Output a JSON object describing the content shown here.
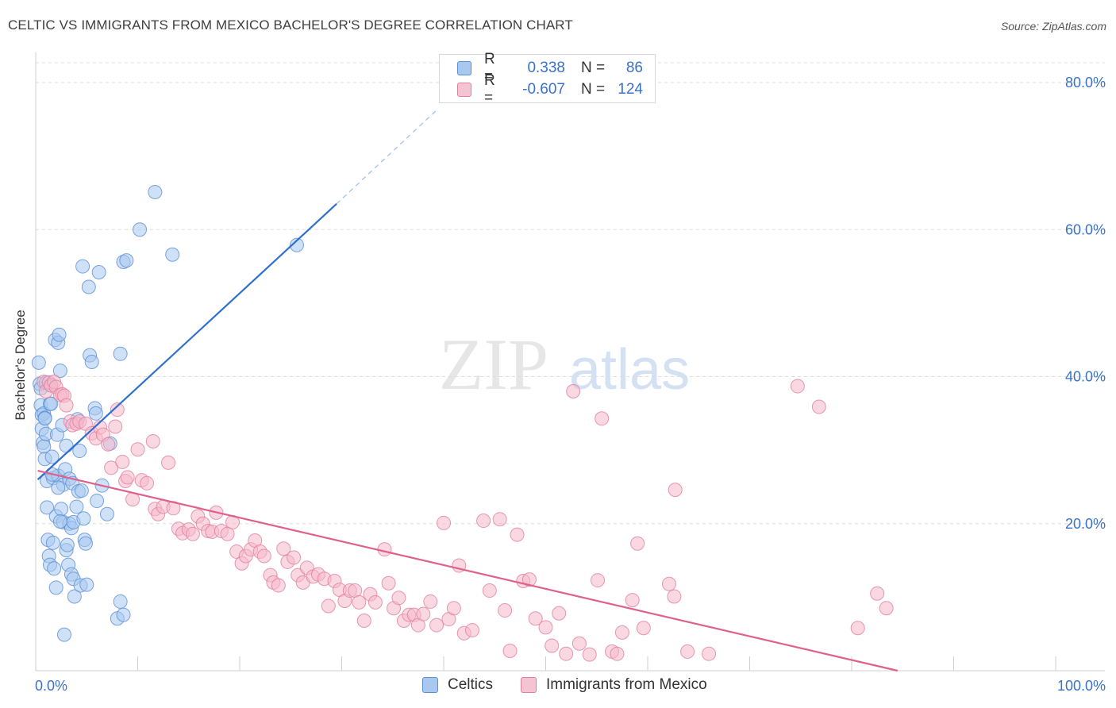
{
  "title": "CELTIC VS IMMIGRANTS FROM MEXICO BACHELOR'S DEGREE CORRELATION CHART",
  "source": "Source: ZipAtlas.com",
  "watermark": {
    "zip": "ZIP",
    "atlas": "atlas"
  },
  "legend_top": {
    "rows": [
      {
        "r_label": "R =",
        "r_value": "0.338",
        "n_label": "N =",
        "n_value": "86"
      },
      {
        "r_label": "R =",
        "r_value": "-0.607",
        "n_label": "N =",
        "n_value": "124"
      }
    ]
  },
  "legend_bottom": {
    "celtics": "Celtics",
    "mexico": "Immigrants from Mexico"
  },
  "colors": {
    "blue_fill": "#a8c8f0",
    "blue_stroke": "#5b8fd6",
    "blue_line": "#2e6fcf",
    "pink_fill": "#f5b8cb",
    "pink_stroke": "#e0809f",
    "pink_line": "#e0608c",
    "axis_text": "#3a72c9",
    "grid": "#dcdcdc"
  },
  "chart_data": {
    "type": "scatter",
    "title": "CELTIC VS IMMIGRANTS FROM MEXICO BACHELOR'S DEGREE CORRELATION CHART",
    "xlabel": "",
    "ylabel": "Bachelor's Degree",
    "xlim": [
      0,
      100
    ],
    "ylim": [
      0,
      80
    ],
    "x_ticks": [
      0,
      10,
      20,
      30,
      40,
      50,
      60,
      70,
      80,
      90,
      100
    ],
    "x_tick_labels": {
      "0": "0.0%",
      "100": "100.0%"
    },
    "y_ticks": [
      20,
      40,
      60,
      80
    ],
    "y_tick_labels": [
      "20.0%",
      "40.0%",
      "60.0%",
      "80.0%"
    ],
    "grid": true,
    "legend_position": "top-center",
    "series": [
      {
        "name": "Celtics",
        "R": 0.338,
        "N": 86,
        "trend": {
          "x": [
            0.2,
            29.5
          ],
          "y": [
            26,
            63.5
          ]
        },
        "trend_extension": {
          "x": [
            29.5,
            39.5
          ],
          "y": [
            63.5,
            76.5
          ]
        },
        "points": [
          [
            0.3,
            41.9
          ],
          [
            0.4,
            39.0
          ],
          [
            0.5,
            38.4
          ],
          [
            0.5,
            36.1
          ],
          [
            0.6,
            34.8
          ],
          [
            0.6,
            32.9
          ],
          [
            0.7,
            31.0
          ],
          [
            0.8,
            30.5
          ],
          [
            0.8,
            35.0
          ],
          [
            0.9,
            34.4
          ],
          [
            0.9,
            28.8
          ],
          [
            1.0,
            39.2
          ],
          [
            1.0,
            32.2
          ],
          [
            1.1,
            25.8
          ],
          [
            1.1,
            22.2
          ],
          [
            1.2,
            17.8
          ],
          [
            1.3,
            15.6
          ],
          [
            1.4,
            14.4
          ],
          [
            1.4,
            36.3
          ],
          [
            1.5,
            36.3
          ],
          [
            1.6,
            29.1
          ],
          [
            1.7,
            26.2
          ],
          [
            1.7,
            17.4
          ],
          [
            1.8,
            13.9
          ],
          [
            1.9,
            45.0
          ],
          [
            2.0,
            21.0
          ],
          [
            2.0,
            11.3
          ],
          [
            2.1,
            32.1
          ],
          [
            2.2,
            26.5
          ],
          [
            2.2,
            44.6
          ],
          [
            2.3,
            45.7
          ],
          [
            2.4,
            40.8
          ],
          [
            2.5,
            22.0
          ],
          [
            2.6,
            33.4
          ],
          [
            2.7,
            25.3
          ],
          [
            2.7,
            20.2
          ],
          [
            2.8,
            4.9
          ],
          [
            2.9,
            27.4
          ],
          [
            3.0,
            16.4
          ],
          [
            3.1,
            17.1
          ],
          [
            3.2,
            14.4
          ],
          [
            3.3,
            26.1
          ],
          [
            3.3,
            20.0
          ],
          [
            3.5,
            19.4
          ],
          [
            3.5,
            13.1
          ],
          [
            3.6,
            25.5
          ],
          [
            3.7,
            20.2
          ],
          [
            3.7,
            12.5
          ],
          [
            3.8,
            10.1
          ],
          [
            4.0,
            22.3
          ],
          [
            4.1,
            34.2
          ],
          [
            4.2,
            24.4
          ],
          [
            4.3,
            29.9
          ],
          [
            4.4,
            11.6
          ],
          [
            4.5,
            24.5
          ],
          [
            4.6,
            55.0
          ],
          [
            4.7,
            20.7
          ],
          [
            4.8,
            17.8
          ],
          [
            4.9,
            17.3
          ],
          [
            5.0,
            11.7
          ],
          [
            5.2,
            52.2
          ],
          [
            5.3,
            42.9
          ],
          [
            5.5,
            42.0
          ],
          [
            5.8,
            35.7
          ],
          [
            5.9,
            35.0
          ],
          [
            6.0,
            23.1
          ],
          [
            6.2,
            54.2
          ],
          [
            6.5,
            25.2
          ],
          [
            7.0,
            21.3
          ],
          [
            7.3,
            30.9
          ],
          [
            8.0,
            7.1
          ],
          [
            8.3,
            43.1
          ],
          [
            8.3,
            9.4
          ],
          [
            8.6,
            7.6
          ],
          [
            8.6,
            55.6
          ],
          [
            8.9,
            55.8
          ],
          [
            10.2,
            60.0
          ],
          [
            11.7,
            65.1
          ],
          [
            13.4,
            56.6
          ],
          [
            25.6,
            57.9
          ],
          [
            2.4,
            20.3
          ],
          [
            1.6,
            26.7
          ],
          [
            3.0,
            30.6
          ],
          [
            0.9,
            34.3
          ],
          [
            1.5,
            38.9
          ],
          [
            2.2,
            24.9
          ]
        ]
      },
      {
        "name": "Immigrants from Mexico",
        "R": -0.607,
        "N": 124,
        "trend": {
          "x": [
            0.2,
            84.5
          ],
          "y": [
            27.2,
            0
          ]
        },
        "points": [
          [
            0.8,
            39.3
          ],
          [
            1.0,
            38.0
          ],
          [
            1.3,
            39.2
          ],
          [
            1.5,
            38.8
          ],
          [
            1.8,
            39.3
          ],
          [
            2.0,
            38.6
          ],
          [
            2.4,
            37.5
          ],
          [
            2.6,
            37.6
          ],
          [
            2.8,
            37.4
          ],
          [
            3.0,
            36.1
          ],
          [
            3.4,
            33.9
          ],
          [
            3.6,
            33.4
          ],
          [
            4.0,
            33.6
          ],
          [
            4.3,
            33.9
          ],
          [
            4.9,
            33.6
          ],
          [
            5.5,
            32.3
          ],
          [
            5.9,
            31.6
          ],
          [
            6.3,
            33.1
          ],
          [
            6.6,
            32.1
          ],
          [
            7.1,
            30.8
          ],
          [
            7.4,
            27.6
          ],
          [
            7.8,
            33.2
          ],
          [
            8.0,
            35.5
          ],
          [
            8.5,
            28.4
          ],
          [
            8.8,
            25.8
          ],
          [
            9.0,
            26.3
          ],
          [
            9.5,
            23.3
          ],
          [
            10.0,
            30.1
          ],
          [
            10.4,
            25.9
          ],
          [
            10.9,
            25.5
          ],
          [
            11.5,
            31.2
          ],
          [
            11.7,
            22.0
          ],
          [
            12.0,
            21.3
          ],
          [
            12.5,
            22.3
          ],
          [
            13.0,
            28.3
          ],
          [
            13.5,
            22.1
          ],
          [
            14.0,
            19.3
          ],
          [
            14.4,
            18.7
          ],
          [
            15.0,
            19.2
          ],
          [
            15.4,
            18.6
          ],
          [
            15.9,
            21.0
          ],
          [
            16.4,
            20.0
          ],
          [
            16.9,
            19.0
          ],
          [
            17.3,
            18.9
          ],
          [
            17.7,
            21.5
          ],
          [
            18.2,
            19.0
          ],
          [
            18.8,
            18.6
          ],
          [
            19.3,
            20.2
          ],
          [
            19.7,
            16.2
          ],
          [
            20.2,
            14.6
          ],
          [
            20.6,
            15.6
          ],
          [
            21.1,
            16.5
          ],
          [
            21.5,
            17.7
          ],
          [
            22.0,
            16.2
          ],
          [
            22.4,
            15.6
          ],
          [
            23.0,
            13.0
          ],
          [
            23.3,
            12.0
          ],
          [
            23.8,
            11.6
          ],
          [
            24.3,
            16.6
          ],
          [
            24.7,
            14.8
          ],
          [
            25.3,
            15.4
          ],
          [
            25.7,
            13.0
          ],
          [
            26.2,
            12.0
          ],
          [
            26.6,
            14.0
          ],
          [
            27.2,
            12.8
          ],
          [
            27.7,
            13.1
          ],
          [
            28.3,
            12.5
          ],
          [
            28.7,
            8.8
          ],
          [
            29.3,
            12.2
          ],
          [
            29.8,
            11.0
          ],
          [
            30.3,
            9.5
          ],
          [
            30.8,
            10.9
          ],
          [
            31.3,
            10.9
          ],
          [
            31.7,
            9.3
          ],
          [
            32.2,
            6.8
          ],
          [
            32.8,
            10.4
          ],
          [
            33.3,
            9.3
          ],
          [
            34.2,
            16.5
          ],
          [
            34.6,
            11.9
          ],
          [
            35.1,
            8.5
          ],
          [
            35.6,
            9.9
          ],
          [
            36.1,
            6.8
          ],
          [
            36.6,
            7.6
          ],
          [
            37.1,
            7.6
          ],
          [
            37.5,
            6.2
          ],
          [
            38.0,
            7.7
          ],
          [
            38.7,
            9.4
          ],
          [
            39.3,
            6.2
          ],
          [
            40.0,
            20.1
          ],
          [
            40.5,
            7.0
          ],
          [
            41.0,
            8.5
          ],
          [
            41.5,
            14.3
          ],
          [
            42.0,
            5.1
          ],
          [
            42.8,
            5.5
          ],
          [
            44.5,
            10.9
          ],
          [
            45.5,
            20.6
          ],
          [
            46.0,
            8.2
          ],
          [
            46.5,
            2.7
          ],
          [
            47.2,
            18.5
          ],
          [
            47.8,
            12.2
          ],
          [
            48.4,
            12.4
          ],
          [
            49.0,
            7.1
          ],
          [
            50.0,
            5.9
          ],
          [
            50.6,
            3.4
          ],
          [
            51.3,
            7.8
          ],
          [
            52.0,
            2.3
          ],
          [
            53.3,
            3.7
          ],
          [
            54.3,
            2.2
          ],
          [
            55.1,
            12.3
          ],
          [
            55.5,
            34.3
          ],
          [
            56.5,
            2.6
          ],
          [
            57.0,
            2.3
          ],
          [
            57.5,
            5.2
          ],
          [
            58.5,
            9.6
          ],
          [
            59.0,
            17.3
          ],
          [
            59.6,
            5.8
          ],
          [
            62.1,
            11.8
          ],
          [
            62.6,
            10.1
          ],
          [
            62.7,
            24.6
          ],
          [
            63.9,
            2.6
          ],
          [
            66.0,
            2.3
          ],
          [
            74.7,
            38.7
          ],
          [
            76.8,
            35.9
          ],
          [
            80.6,
            5.8
          ],
          [
            82.5,
            10.5
          ],
          [
            83.4,
            8.5
          ],
          [
            52.7,
            38.0
          ],
          [
            43.9,
            20.4
          ]
        ]
      }
    ]
  }
}
